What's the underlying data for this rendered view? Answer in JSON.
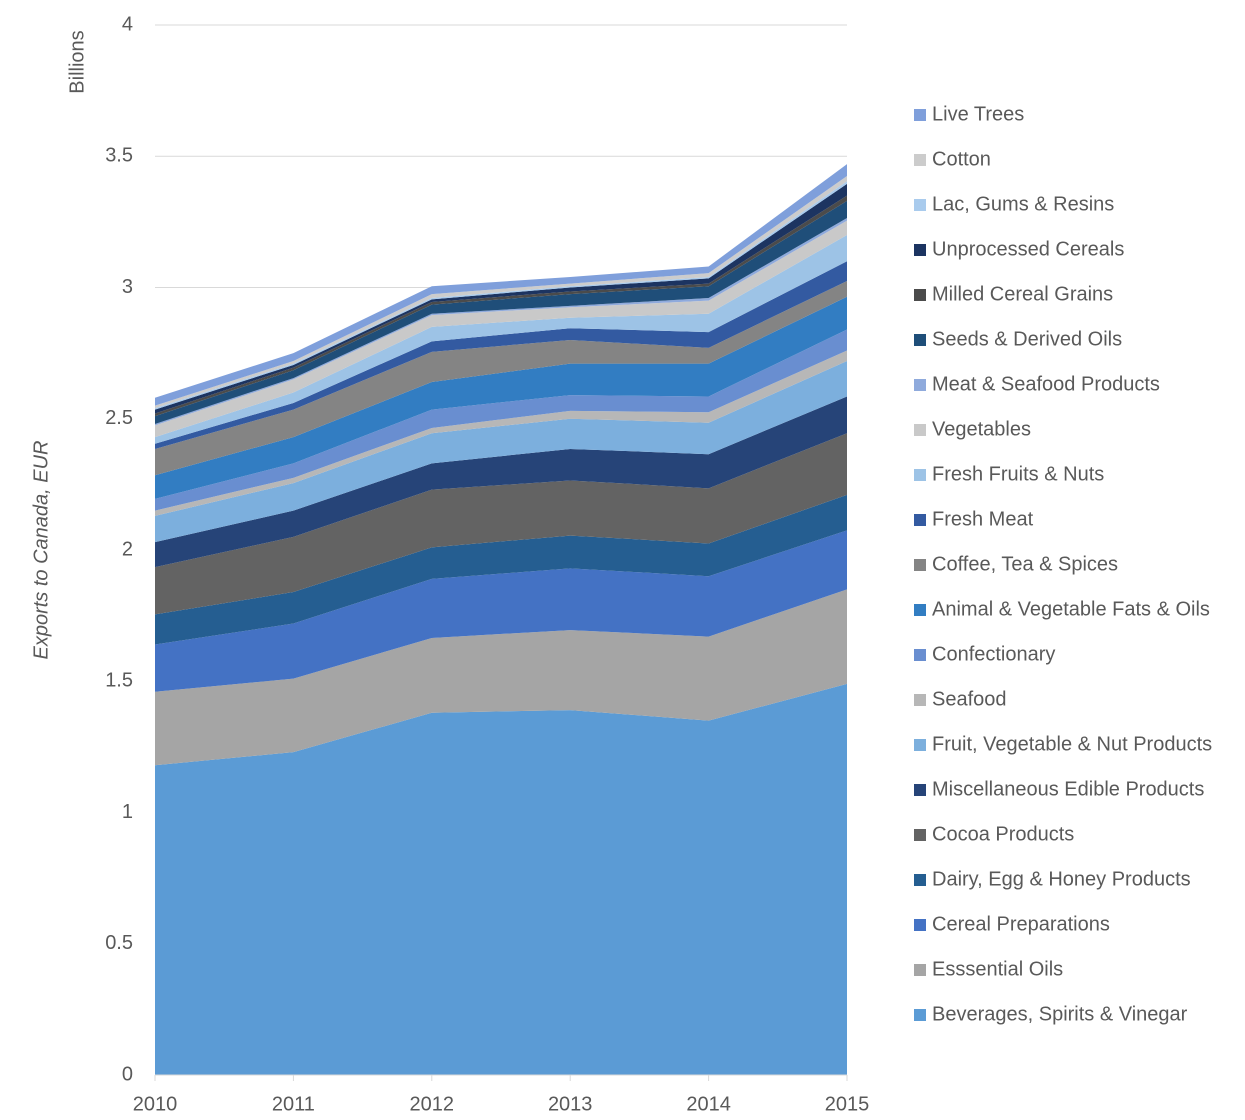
{
  "chart_data": {
    "type": "stacked_area",
    "y_axis_label": "Exports to Canada, EUR",
    "y_unit_label": "Billions",
    "categories": [
      "2010",
      "2011",
      "2012",
      "2013",
      "2014",
      "2015"
    ],
    "ylim": [
      0,
      4
    ],
    "yticks": [
      0,
      0.5,
      1,
      1.5,
      2,
      2.5,
      3,
      3.5,
      4
    ],
    "grid": true,
    "legend": "right",
    "series": [
      {
        "name": "Beverages, Spirits & Vinegar",
        "color": "#5b9bd5",
        "values": [
          1.18,
          1.23,
          1.38,
          1.39,
          1.35,
          1.49
        ]
      },
      {
        "name": "Esssential Oils",
        "color": "#a5a5a5",
        "values": [
          0.28,
          0.28,
          0.285,
          0.305,
          0.32,
          0.36
        ]
      },
      {
        "name": "Cereal Preparations",
        "color": "#4472c4",
        "values": [
          0.18,
          0.21,
          0.225,
          0.235,
          0.23,
          0.225
        ]
      },
      {
        "name": "Dairy, Egg & Honey Products",
        "color": "#255e91",
        "values": [
          0.115,
          0.12,
          0.12,
          0.125,
          0.125,
          0.135
        ]
      },
      {
        "name": "Cocoa Products",
        "color": "#636363",
        "values": [
          0.18,
          0.21,
          0.22,
          0.21,
          0.21,
          0.235
        ]
      },
      {
        "name": "Miscellaneous Edible Products",
        "color": "#264478",
        "values": [
          0.095,
          0.1,
          0.1,
          0.12,
          0.13,
          0.14
        ]
      },
      {
        "name": "Fruit, Vegetable & Nut Products",
        "color": "#7cafdd",
        "values": [
          0.1,
          0.105,
          0.115,
          0.115,
          0.12,
          0.135
        ]
      },
      {
        "name": "Seafood",
        "color": "#b7b7b7",
        "values": [
          0.02,
          0.02,
          0.02,
          0.03,
          0.04,
          0.04
        ]
      },
      {
        "name": "Confectionary",
        "color": "#698ed0",
        "values": [
          0.045,
          0.055,
          0.07,
          0.06,
          0.06,
          0.08
        ]
      },
      {
        "name": "Animal & Vegetable Fats & Oils",
        "color": "#327dc2",
        "values": [
          0.09,
          0.1,
          0.105,
          0.12,
          0.125,
          0.125
        ]
      },
      {
        "name": "Coffee, Tea & Spices",
        "color": "#848484",
        "values": [
          0.1,
          0.105,
          0.115,
          0.09,
          0.06,
          0.06
        ]
      },
      {
        "name": "Fresh Meat",
        "color": "#335aa1",
        "values": [
          0.02,
          0.025,
          0.04,
          0.045,
          0.06,
          0.075
        ]
      },
      {
        "name": "Fresh Fruits & Nuts",
        "color": "#9dc3e6",
        "values": [
          0.025,
          0.04,
          0.055,
          0.04,
          0.07,
          0.1
        ]
      },
      {
        "name": "Vegetables",
        "color": "#c9c9c9",
        "values": [
          0.045,
          0.05,
          0.045,
          0.04,
          0.05,
          0.055
        ]
      },
      {
        "name": "Meat & Seafood Products",
        "color": "#8faadc",
        "values": [
          0.005,
          0.005,
          0.005,
          0.005,
          0.01,
          0.01
        ]
      },
      {
        "name": "Seeds & Derived Oils",
        "color": "#1f4e79",
        "values": [
          0.03,
          0.03,
          0.035,
          0.045,
          0.045,
          0.065
        ]
      },
      {
        "name": "Milled Cereal Grains",
        "color": "#4b4b4b",
        "values": [
          0.01,
          0.01,
          0.01,
          0.01,
          0.01,
          0.02
        ]
      },
      {
        "name": "Unprocessed Cereals",
        "color": "#1c3461",
        "values": [
          0.015,
          0.01,
          0.01,
          0.015,
          0.02,
          0.045
        ]
      },
      {
        "name": "Lac, Gums & Resins",
        "color": "#a9cbed",
        "values": [
          0.005,
          0.005,
          0.005,
          0.005,
          0.005,
          0.01
        ]
      },
      {
        "name": "Cotton",
        "color": "#cccccc",
        "values": [
          0.01,
          0.01,
          0.015,
          0.01,
          0.015,
          0.02
        ]
      },
      {
        "name": "Live Trees",
        "color": "#7f9fdb",
        "values": [
          0.03,
          0.03,
          0.03,
          0.025,
          0.025,
          0.045
        ]
      }
    ]
  }
}
